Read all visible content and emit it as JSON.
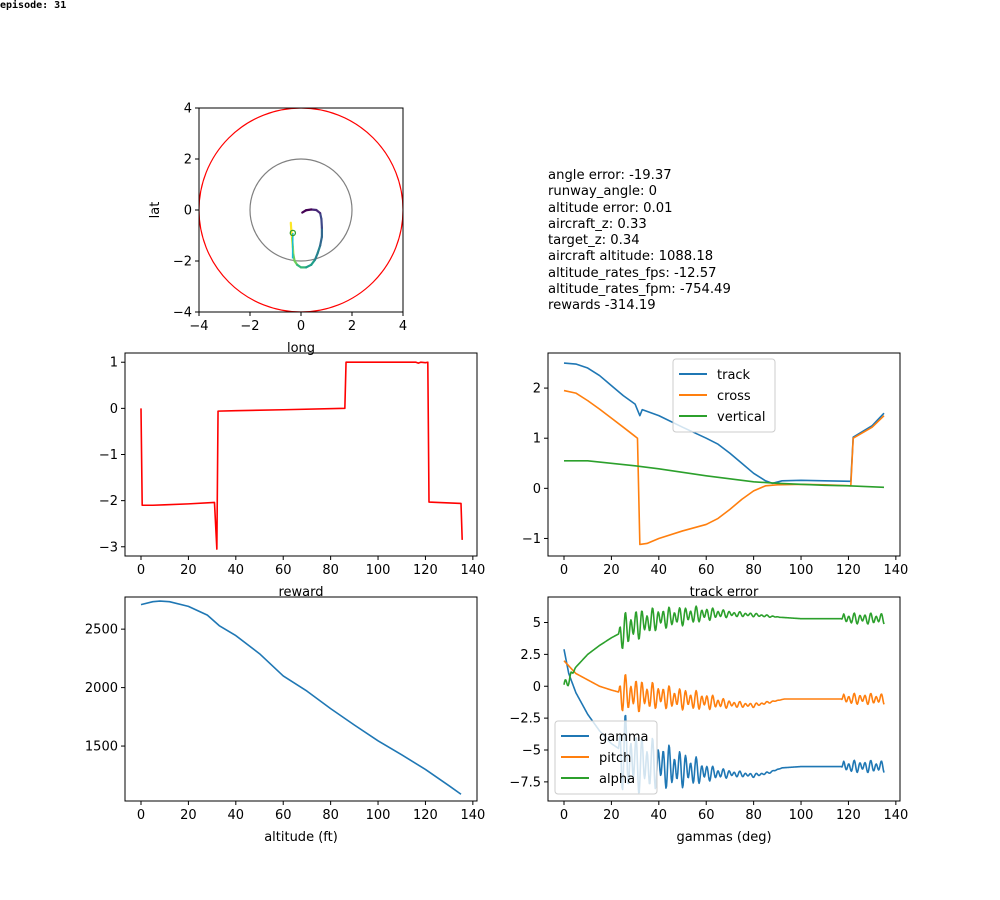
{
  "header": {
    "episode_label": "episode: 31"
  },
  "info": {
    "lines": [
      "angle error: -19.37",
      "runway_angle: 0",
      "altitude error: 0.01",
      "aircraft_z: 0.33",
      "target_z: 0.34",
      "aircraft altitude: 1088.18",
      "altitude_rates_fps: -12.57",
      "altitude_rates_fpm: -754.49",
      "rewards -314.19"
    ]
  },
  "colors": {
    "blue": "#1f77b4",
    "orange": "#ff7f0e",
    "green": "#2ca02c",
    "red": "#ff0000",
    "gray": "#808080",
    "purple": "#440154",
    "yellow": "#fde725"
  },
  "chart_data": [
    {
      "id": "map",
      "type": "scatter",
      "xlabel": "long",
      "ylabel": "lat",
      "xlim": [
        -4,
        4
      ],
      "ylim": [
        -4,
        4
      ],
      "xticks": [
        -4,
        -2,
        0,
        2,
        4
      ],
      "yticks": [
        -4,
        -2,
        0,
        2,
        4
      ],
      "circles": [
        {
          "radius": 4,
          "color": "#ff0000"
        },
        {
          "radius": 2,
          "color": "#808080"
        }
      ],
      "path": [
        [
          -0.4,
          -0.5
        ],
        [
          -0.38,
          -0.8
        ],
        [
          -0.35,
          -1.1
        ],
        [
          -0.32,
          -1.45
        ],
        [
          -0.3,
          -1.75
        ],
        [
          -0.25,
          -2.0
        ],
        [
          -0.15,
          -2.15
        ],
        [
          0.0,
          -2.25
        ],
        [
          0.2,
          -2.25
        ],
        [
          0.4,
          -2.15
        ],
        [
          0.55,
          -1.95
        ],
        [
          0.65,
          -1.7
        ],
        [
          0.75,
          -1.4
        ],
        [
          0.82,
          -1.05
        ],
        [
          0.82,
          -0.7
        ],
        [
          0.8,
          -0.35
        ],
        [
          0.75,
          -0.12
        ],
        [
          0.6,
          0.0
        ],
        [
          0.4,
          0.02
        ],
        [
          0.2,
          -0.01
        ],
        [
          0.05,
          -0.1
        ]
      ],
      "aircraft_line": [
        [
          -0.32,
          -0.9
        ],
        [
          -0.33,
          -1.9
        ]
      ],
      "aircraft_point": [
        -0.32,
        -0.9
      ]
    },
    {
      "id": "reward",
      "type": "line",
      "xlabel": "reward",
      "xlim": [
        -6.75,
        141.75
      ],
      "ylim": [
        -3.2,
        1.2
      ],
      "xticks": [
        0,
        20,
        40,
        60,
        80,
        100,
        120,
        140
      ],
      "yticks": [
        -3,
        -2,
        -1,
        0,
        1
      ],
      "series": [
        {
          "values": [
            [
              0,
              0.0
            ],
            [
              0.5,
              -2.1
            ],
            [
              5,
              -2.1
            ],
            [
              10,
              -2.09
            ],
            [
              20,
              -2.07
            ],
            [
              31,
              -2.04
            ],
            [
              32,
              -3.05
            ],
            [
              32.5,
              -0.06
            ],
            [
              40,
              -0.05
            ],
            [
              60,
              -0.03
            ],
            [
              86,
              0.0
            ],
            [
              86.5,
              1.0
            ],
            [
              100,
              1.0
            ],
            [
              116,
              1.0
            ],
            [
              117,
              0.98
            ],
            [
              118,
              1.0
            ],
            [
              120,
              0.99
            ],
            [
              121,
              1.0
            ],
            [
              121.5,
              -2.03
            ],
            [
              125,
              -2.04
            ],
            [
              135,
              -2.06
            ],
            [
              135.5,
              -2.85
            ]
          ],
          "color": "#ff0000"
        }
      ]
    },
    {
      "id": "track",
      "type": "line",
      "xlabel": "track error",
      "xlim": [
        -6.75,
        141.75
      ],
      "ylim": [
        -1.35,
        2.7
      ],
      "xticks": [
        0,
        20,
        40,
        60,
        80,
        100,
        120,
        140
      ],
      "yticks": [
        -1,
        0,
        1,
        2
      ],
      "legend": "top-center",
      "series": [
        {
          "name": "track",
          "color": "#1f77b4",
          "values": [
            [
              0,
              2.5
            ],
            [
              5,
              2.48
            ],
            [
              10,
              2.4
            ],
            [
              15,
              2.25
            ],
            [
              20,
              2.05
            ],
            [
              25,
              1.85
            ],
            [
              30,
              1.68
            ],
            [
              32,
              1.45
            ],
            [
              33,
              1.57
            ],
            [
              40,
              1.45
            ],
            [
              50,
              1.22
            ],
            [
              60,
              1.0
            ],
            [
              65,
              0.88
            ],
            [
              70,
              0.7
            ],
            [
              75,
              0.5
            ],
            [
              80,
              0.3
            ],
            [
              85,
              0.15
            ],
            [
              88,
              0.1
            ],
            [
              92,
              0.15
            ],
            [
              100,
              0.16
            ],
            [
              110,
              0.15
            ],
            [
              121,
              0.14
            ],
            [
              122,
              1.02
            ],
            [
              130,
              1.25
            ],
            [
              135,
              1.5
            ]
          ]
        },
        {
          "name": "cross",
          "color": "#ff7f0e",
          "values": [
            [
              0,
              1.95
            ],
            [
              5,
              1.9
            ],
            [
              10,
              1.75
            ],
            [
              15,
              1.58
            ],
            [
              20,
              1.4
            ],
            [
              25,
              1.22
            ],
            [
              31,
              1.0
            ],
            [
              32,
              -1.12
            ],
            [
              35,
              -1.1
            ],
            [
              40,
              -1.0
            ],
            [
              50,
              -0.85
            ],
            [
              60,
              -0.72
            ],
            [
              65,
              -0.6
            ],
            [
              70,
              -0.42
            ],
            [
              75,
              -0.22
            ],
            [
              80,
              -0.05
            ],
            [
              85,
              0.05
            ],
            [
              90,
              0.07
            ],
            [
              100,
              0.08
            ],
            [
              110,
              0.07
            ],
            [
              121,
              0.05
            ],
            [
              122,
              1.0
            ],
            [
              130,
              1.22
            ],
            [
              135,
              1.45
            ]
          ]
        },
        {
          "name": "vertical",
          "color": "#2ca02c",
          "values": [
            [
              0,
              0.55
            ],
            [
              10,
              0.55
            ],
            [
              20,
              0.5
            ],
            [
              30,
              0.45
            ],
            [
              40,
              0.39
            ],
            [
              50,
              0.32
            ],
            [
              60,
              0.25
            ],
            [
              70,
              0.19
            ],
            [
              80,
              0.13
            ],
            [
              90,
              0.1
            ],
            [
              100,
              0.08
            ],
            [
              110,
              0.06
            ],
            [
              120,
              0.05
            ],
            [
              135,
              0.02
            ]
          ]
        }
      ]
    },
    {
      "id": "altitude",
      "type": "line",
      "xlabel": "altitude (ft)",
      "xlim": [
        -6.75,
        141.75
      ],
      "ylim": [
        1030,
        2775
      ],
      "xticks": [
        0,
        20,
        40,
        60,
        80,
        100,
        120,
        140
      ],
      "yticks": [
        1500,
        2000,
        2500
      ],
      "series": [
        {
          "color": "#1f77b4",
          "values": [
            [
              0,
              2710
            ],
            [
              5,
              2735
            ],
            [
              8,
              2740
            ],
            [
              12,
              2735
            ],
            [
              20,
              2695
            ],
            [
              28,
              2620
            ],
            [
              33,
              2530
            ],
            [
              40,
              2445
            ],
            [
              50,
              2290
            ],
            [
              60,
              2100
            ],
            [
              70,
              1970
            ],
            [
              80,
              1820
            ],
            [
              90,
              1680
            ],
            [
              100,
              1545
            ],
            [
              110,
              1425
            ],
            [
              120,
              1300
            ],
            [
              130,
              1160
            ],
            [
              135,
              1088
            ]
          ]
        }
      ]
    },
    {
      "id": "gammas",
      "type": "line",
      "xlabel": "gammas (deg)",
      "xlim": [
        -6.75,
        141.75
      ],
      "ylim": [
        -9.0,
        7.0
      ],
      "xticks": [
        0,
        20,
        40,
        60,
        80,
        100,
        120,
        140
      ],
      "yticks": [
        -7.5,
        -5.0,
        -2.5,
        0.0,
        2.5,
        5.0
      ],
      "legend": "bottom-left",
      "series": [
        {
          "name": "gamma",
          "color": "#1f77b4",
          "base": [
            [
              0,
              2.9
            ],
            [
              2,
              1.0
            ],
            [
              5,
              -0.5
            ],
            [
              10,
              -2.2
            ],
            [
              15,
              -3.5
            ],
            [
              20,
              -4.5
            ],
            [
              24,
              -5.0
            ],
            [
              30,
              -6.0
            ],
            [
              40,
              -6.2
            ],
            [
              50,
              -6.5
            ],
            [
              60,
              -6.8
            ],
            [
              75,
              -6.9
            ],
            [
              80,
              -7.0
            ],
            [
              86,
              -6.8
            ],
            [
              92,
              -6.4
            ],
            [
              100,
              -6.3
            ],
            [
              135,
              -6.3
            ]
          ],
          "osc": [
            [
              0,
              0
            ],
            [
              23,
              0
            ],
            [
              24,
              3.5
            ],
            [
              30,
              2.5
            ],
            [
              40,
              2.0
            ],
            [
              55,
              1.2
            ],
            [
              62,
              0.6
            ],
            [
              70,
              0.3
            ],
            [
              80,
              0.15
            ],
            [
              85,
              0.1
            ],
            [
              92,
              0
            ],
            [
              117,
              0
            ],
            [
              118,
              0.5
            ],
            [
              135,
              0.5
            ]
          ]
        },
        {
          "name": "pitch",
          "color": "#ff7f0e",
          "base": [
            [
              0,
              2.0
            ],
            [
              2,
              1.6
            ],
            [
              5,
              1.0
            ],
            [
              10,
              0.5
            ],
            [
              15,
              0.0
            ],
            [
              20,
              -0.3
            ],
            [
              24,
              -0.5
            ],
            [
              30,
              -0.7
            ],
            [
              40,
              -0.8
            ],
            [
              50,
              -1.0
            ],
            [
              60,
              -1.2
            ],
            [
              70,
              -1.4
            ],
            [
              80,
              -1.5
            ],
            [
              88,
              -1.2
            ],
            [
              93,
              -1.0
            ],
            [
              135,
              -1.0
            ]
          ],
          "osc": [
            [
              0,
              0
            ],
            [
              23,
              0
            ],
            [
              24,
              1.6
            ],
            [
              40,
              1.0
            ],
            [
              55,
              0.8
            ],
            [
              62,
              0.6
            ],
            [
              70,
              0.3
            ],
            [
              85,
              0.1
            ],
            [
              92,
              0
            ],
            [
              117,
              0
            ],
            [
              118,
              0.45
            ],
            [
              135,
              0.45
            ]
          ]
        },
        {
          "name": "alpha",
          "color": "#2ca02c",
          "base": [
            [
              0,
              0.0
            ],
            [
              2,
              0.5
            ],
            [
              5,
              1.5
            ],
            [
              10,
              2.5
            ],
            [
              15,
              3.2
            ],
            [
              20,
              3.8
            ],
            [
              24,
              4.2
            ],
            [
              30,
              4.8
            ],
            [
              40,
              5.3
            ],
            [
              55,
              5.6
            ],
            [
              65,
              5.7
            ],
            [
              80,
              5.6
            ],
            [
              92,
              5.4
            ],
            [
              100,
              5.3
            ],
            [
              135,
              5.3
            ]
          ],
          "osc": [
            [
              0,
              0.4
            ],
            [
              3,
              0.4
            ],
            [
              5,
              0
            ],
            [
              23,
              0
            ],
            [
              24,
              1.5
            ],
            [
              40,
              0.9
            ],
            [
              55,
              0.7
            ],
            [
              62,
              0.5
            ],
            [
              70,
              0.25
            ],
            [
              85,
              0.1
            ],
            [
              92,
              0
            ],
            [
              117,
              0
            ],
            [
              118,
              0.45
            ],
            [
              135,
              0.45
            ]
          ]
        }
      ]
    }
  ]
}
